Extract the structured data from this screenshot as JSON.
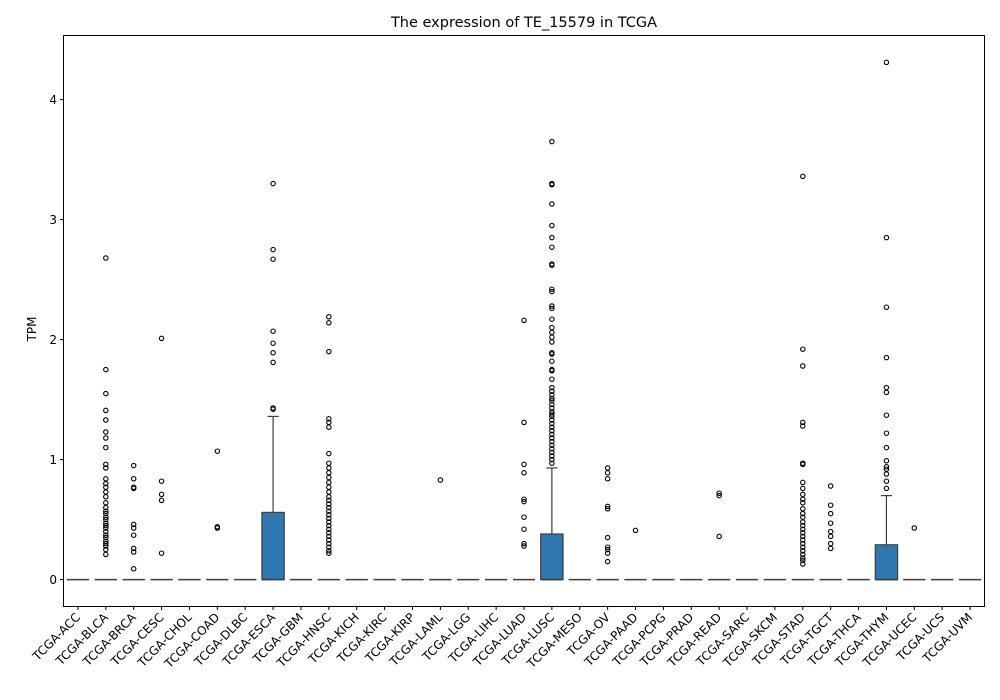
{
  "chart_data": {
    "type": "box",
    "title": "The expression of TE_15579 in TCGA",
    "xlabel": "",
    "ylabel": "TPM",
    "ylim": [
      -0.22,
      4.53
    ],
    "yticks": [
      0,
      1,
      2,
      3,
      4
    ],
    "box_color": "#2e77b0",
    "categories": [
      "TCGA-ACC",
      "TCGA-BLCA",
      "TCGA-BRCA",
      "TCGA-CESC",
      "TCGA-CHOL",
      "TCGA-COAD",
      "TCGA-DLBC",
      "TCGA-ESCA",
      "TCGA-GBM",
      "TCGA-HNSC",
      "TCGA-KICH",
      "TCGA-KIRC",
      "TCGA-KIRP",
      "TCGA-LAML",
      "TCGA-LGG",
      "TCGA-LIHC",
      "TCGA-LUAD",
      "TCGA-LUSC",
      "TCGA-MESO",
      "TCGA-OV",
      "TCGA-PAAD",
      "TCGA-PCPG",
      "TCGA-PRAD",
      "TCGA-READ",
      "TCGA-SARC",
      "TCGA-SKCM",
      "TCGA-STAD",
      "TCGA-TGCT",
      "TCGA-THCA",
      "TCGA-THYM",
      "TCGA-UCEC",
      "TCGA-UCS",
      "TCGA-UVM"
    ],
    "boxes": [
      {
        "q1": 0,
        "median": 0,
        "q3": 0,
        "whislo": 0,
        "whishi": 0,
        "fliers": []
      },
      {
        "q1": 0,
        "median": 0,
        "q3": 0,
        "whislo": 0,
        "whishi": 0,
        "fliers": [
          2.68,
          1.75,
          1.55,
          1.41,
          1.33,
          1.23,
          1.18,
          1.1,
          0.96,
          0.93,
          0.84,
          0.8,
          0.77,
          0.73,
          0.69,
          0.64,
          0.6,
          0.57,
          0.55,
          0.52,
          0.5,
          0.47,
          0.45,
          0.43,
          0.4,
          0.37,
          0.35,
          0.32,
          0.3,
          0.28,
          0.25,
          0.21
        ]
      },
      {
        "q1": 0,
        "median": 0,
        "q3": 0,
        "whislo": 0,
        "whishi": 0,
        "fliers": [
          0.95,
          0.84,
          0.77,
          0.76,
          0.46,
          0.43,
          0.37,
          0.26,
          0.23,
          0.09
        ]
      },
      {
        "q1": 0,
        "median": 0,
        "q3": 0,
        "whislo": 0,
        "whishi": 0,
        "fliers": [
          2.01,
          0.82,
          0.71,
          0.66,
          0.22
        ]
      },
      {
        "q1": 0,
        "median": 0,
        "q3": 0,
        "whislo": 0,
        "whishi": 0,
        "fliers": []
      },
      {
        "q1": 0,
        "median": 0,
        "q3": 0,
        "whislo": 0,
        "whishi": 0,
        "fliers": [
          1.07,
          0.44,
          0.43
        ]
      },
      {
        "q1": 0,
        "median": 0,
        "q3": 0,
        "whislo": 0,
        "whishi": 0,
        "fliers": []
      },
      {
        "q1": 0,
        "median": 0,
        "q3": 0.56,
        "whislo": 0,
        "whishi": 1.36,
        "fliers": [
          3.3,
          2.75,
          2.67,
          2.07,
          1.97,
          1.89,
          1.81,
          1.43,
          1.42
        ]
      },
      {
        "q1": 0,
        "median": 0,
        "q3": 0,
        "whislo": 0,
        "whishi": 0,
        "fliers": []
      },
      {
        "q1": 0,
        "median": 0,
        "q3": 0,
        "whislo": 0,
        "whishi": 0,
        "fliers": [
          2.19,
          2.14,
          1.9,
          1.34,
          1.31,
          1.27,
          1.05,
          0.97,
          0.93,
          0.89,
          0.85,
          0.81,
          0.77,
          0.73,
          0.69,
          0.66,
          0.63,
          0.6,
          0.57,
          0.54,
          0.51,
          0.48,
          0.45,
          0.42,
          0.39,
          0.36,
          0.33,
          0.3,
          0.27,
          0.24,
          0.22
        ]
      },
      {
        "q1": 0,
        "median": 0,
        "q3": 0,
        "whislo": 0,
        "whishi": 0,
        "fliers": []
      },
      {
        "q1": 0,
        "median": 0,
        "q3": 0,
        "whislo": 0,
        "whishi": 0,
        "fliers": []
      },
      {
        "q1": 0,
        "median": 0,
        "q3": 0,
        "whislo": 0,
        "whishi": 0,
        "fliers": []
      },
      {
        "q1": 0,
        "median": 0,
        "q3": 0,
        "whislo": 0,
        "whishi": 0,
        "fliers": [
          0.83
        ]
      },
      {
        "q1": 0,
        "median": 0,
        "q3": 0,
        "whislo": 0,
        "whishi": 0,
        "fliers": []
      },
      {
        "q1": 0,
        "median": 0,
        "q3": 0,
        "whislo": 0,
        "whishi": 0,
        "fliers": []
      },
      {
        "q1": 0,
        "median": 0,
        "q3": 0,
        "whislo": 0,
        "whishi": 0,
        "fliers": [
          2.16,
          1.31,
          0.96,
          0.89,
          0.67,
          0.65,
          0.52,
          0.42,
          0.3,
          0.28
        ]
      },
      {
        "q1": 0,
        "median": 0,
        "q3": 0.38,
        "whislo": 0,
        "whishi": 0.93,
        "fliers": [
          3.65,
          3.3,
          3.29,
          3.13,
          2.95,
          2.85,
          2.77,
          2.63,
          2.62,
          2.42,
          2.4,
          2.28,
          2.26,
          2.17,
          2.1,
          2.06,
          2.02,
          1.98,
          1.89,
          1.88,
          1.82,
          1.75,
          1.74,
          1.67,
          1.6,
          1.57,
          1.54,
          1.51,
          1.49,
          1.46,
          1.43,
          1.4,
          1.38,
          1.36,
          1.33,
          1.3,
          1.27,
          1.24,
          1.21,
          1.18,
          1.15,
          1.12,
          1.09,
          1.06,
          1.03,
          1.0,
          0.97
        ]
      },
      {
        "q1": 0,
        "median": 0,
        "q3": 0,
        "whislo": 0,
        "whishi": 0,
        "fliers": []
      },
      {
        "q1": 0,
        "median": 0,
        "q3": 0,
        "whislo": 0,
        "whishi": 0,
        "fliers": [
          0.93,
          0.89,
          0.84,
          0.61,
          0.59,
          0.35,
          0.27,
          0.25,
          0.22,
          0.15
        ]
      },
      {
        "q1": 0,
        "median": 0,
        "q3": 0,
        "whislo": 0,
        "whishi": 0,
        "fliers": [
          0.41
        ]
      },
      {
        "q1": 0,
        "median": 0,
        "q3": 0,
        "whislo": 0,
        "whishi": 0,
        "fliers": []
      },
      {
        "q1": 0,
        "median": 0,
        "q3": 0,
        "whislo": 0,
        "whishi": 0,
        "fliers": []
      },
      {
        "q1": 0,
        "median": 0,
        "q3": 0,
        "whislo": 0,
        "whishi": 0,
        "fliers": [
          0.72,
          0.7,
          0.36
        ]
      },
      {
        "q1": 0,
        "median": 0,
        "q3": 0,
        "whislo": 0,
        "whishi": 0,
        "fliers": []
      },
      {
        "q1": 0,
        "median": 0,
        "q3": 0,
        "whislo": 0,
        "whishi": 0,
        "fliers": []
      },
      {
        "q1": 0,
        "median": 0,
        "q3": 0,
        "whislo": 0,
        "whishi": 0,
        "fliers": [
          3.36,
          1.92,
          1.78,
          1.31,
          1.28,
          0.97,
          0.96,
          0.81,
          0.76,
          0.71,
          0.67,
          0.64,
          0.59,
          0.55,
          0.52,
          0.48,
          0.45,
          0.42,
          0.39,
          0.36,
          0.33,
          0.3,
          0.27,
          0.24,
          0.21,
          0.18,
          0.16,
          0.13
        ]
      },
      {
        "q1": 0,
        "median": 0,
        "q3": 0,
        "whislo": 0,
        "whishi": 0,
        "fliers": [
          0.78,
          0.62,
          0.55,
          0.47,
          0.4,
          0.36,
          0.3,
          0.26
        ]
      },
      {
        "q1": 0,
        "median": 0,
        "q3": 0,
        "whislo": 0,
        "whishi": 0,
        "fliers": []
      },
      {
        "q1": 0,
        "median": 0,
        "q3": 0.29,
        "whislo": 0,
        "whishi": 0.7,
        "fliers": [
          4.31,
          2.85,
          2.27,
          1.85,
          1.6,
          1.56,
          1.37,
          1.22,
          1.1,
          0.99,
          0.94,
          0.92,
          0.88,
          0.82,
          0.76
        ]
      },
      {
        "q1": 0,
        "median": 0,
        "q3": 0,
        "whislo": 0,
        "whishi": 0,
        "fliers": [
          0.43
        ]
      },
      {
        "q1": 0,
        "median": 0,
        "q3": 0,
        "whislo": 0,
        "whishi": 0,
        "fliers": []
      },
      {
        "q1": 0,
        "median": 0,
        "q3": 0,
        "whislo": 0,
        "whishi": 0,
        "fliers": []
      }
    ]
  }
}
